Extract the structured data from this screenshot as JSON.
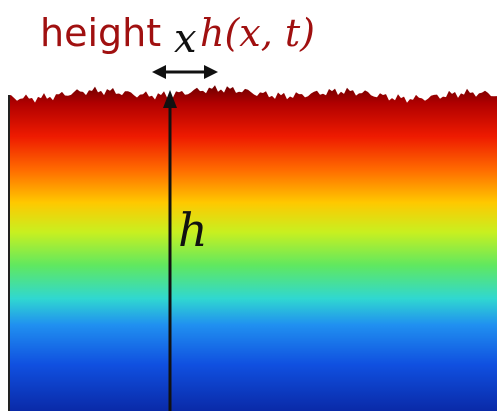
{
  "title": {
    "word": "height",
    "formula": "h(x, t)"
  },
  "labels": {
    "x": "x",
    "h": "h"
  }
}
